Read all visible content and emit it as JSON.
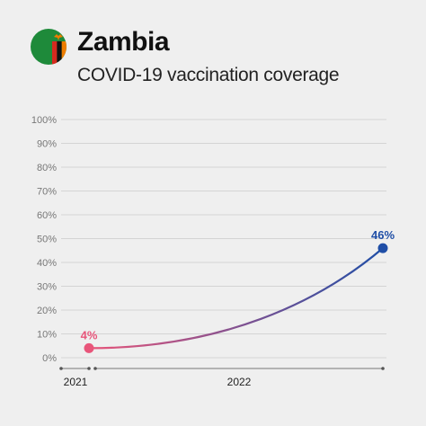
{
  "header": {
    "country": "Zambia",
    "subtitle": "COVID-19 vaccination coverage",
    "flag_icon": "zambia-flag-icon"
  },
  "colors": {
    "background": "#efefef",
    "start": "#e8557a",
    "end": "#1f4ea6",
    "grid": "#d4d4d4",
    "flag_green": "#1e8a3a",
    "flag_red": "#d62a1f",
    "flag_black": "#111111",
    "flag_orange": "#ef7d00"
  },
  "chart_data": {
    "type": "line",
    "title": "COVID-19 vaccination coverage",
    "ylim": [
      0,
      100
    ],
    "y_ticks": [
      0,
      10,
      20,
      30,
      40,
      50,
      60,
      70,
      80,
      90,
      100
    ],
    "y_tick_labels": [
      "0%",
      "10%",
      "20%",
      "30%",
      "40%",
      "50%",
      "60%",
      "70%",
      "80%",
      "90%",
      "100%"
    ],
    "x_labels": [
      "2021",
      "2022"
    ],
    "grid": true,
    "series": [
      {
        "points": [
          {
            "x": "2021",
            "y": 4,
            "label": "4%"
          },
          {
            "x": "2022",
            "y": 46,
            "label": "46%"
          }
        ]
      }
    ]
  }
}
